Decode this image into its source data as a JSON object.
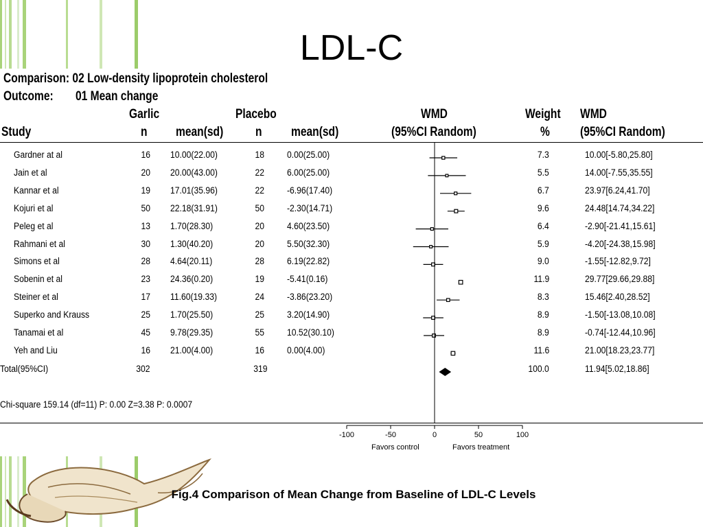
{
  "slide": {
    "title": "LDL-C",
    "caption": "Fig.4 Comparison of Mean Change from Baseline of LDL-C Levels"
  },
  "header": {
    "comparison": "Comparison: 02 Low-density lipoprotein cholesterol",
    "outcome_label": "Outcome:",
    "outcome_value": "01 Mean change",
    "col_study": "Study",
    "col_garlic": "Garlic",
    "col_placebo": "Placebo",
    "col_n": "n",
    "col_mean": "mean(sd)",
    "col_wmd": "WMD",
    "col_ci_random": "(95%CI Random)",
    "col_weight": "Weight",
    "col_pct": "%"
  },
  "chart_data": {
    "type": "forest",
    "xlim": [
      -100,
      100
    ],
    "x_ticks": [
      "-100",
      "-50",
      "0",
      "50",
      "100"
    ],
    "x_tick_values": [
      -100,
      -50,
      0,
      50,
      100
    ],
    "favors_left": "Favors control",
    "favors_right": "Favors treatment",
    "studies": [
      {
        "study": "Gardner at al",
        "g_n": "16",
        "g_mean": "10.00(22.00)",
        "p_n": "18",
        "p_mean": "0.00(25.00)",
        "weight": "7.3",
        "wmd_text": "10.00[-5.80,25.80]",
        "est": 10.0,
        "lo": -5.8,
        "hi": 25.8
      },
      {
        "study": "Jain et al",
        "g_n": "20",
        "g_mean": "20.00(43.00)",
        "p_n": "22",
        "p_mean": "6.00(25.00)",
        "weight": "5.5",
        "wmd_text": "14.00[-7.55,35.55]",
        "est": 14.0,
        "lo": -7.55,
        "hi": 35.55
      },
      {
        "study": "Kannar et al",
        "g_n": "19",
        "g_mean": "17.01(35.96)",
        "p_n": "22",
        "p_mean": "-6.96(17.40)",
        "weight": "6.7",
        "wmd_text": "23.97[6.24,41.70]",
        "est": 23.97,
        "lo": 6.24,
        "hi": 41.7
      },
      {
        "study": "Kojuri et al",
        "g_n": "50",
        "g_mean": "22.18(31.91)",
        "p_n": "50",
        "p_mean": "-2.30(14.71)",
        "weight": "9.6",
        "wmd_text": "24.48[14.74,34.22]",
        "est": 24.48,
        "lo": 14.74,
        "hi": 34.22
      },
      {
        "study": "Peleg et al",
        "g_n": "13",
        "g_mean": "1.70(28.30)",
        "p_n": "20",
        "p_mean": "4.60(23.50)",
        "weight": "6.4",
        "wmd_text": "-2.90[-21.41,15.61]",
        "est": -2.9,
        "lo": -21.41,
        "hi": 15.61
      },
      {
        "study": "Rahmani et al",
        "g_n": "30",
        "g_mean": "1.30(40.20)",
        "p_n": "20",
        "p_mean": "5.50(32.30)",
        "weight": "5.9",
        "wmd_text": "-4.20[-24.38,15.98]",
        "est": -4.2,
        "lo": -24.38,
        "hi": 15.98
      },
      {
        "study": "Simons et al",
        "g_n": "28",
        "g_mean": "4.64(20.11)",
        "p_n": "28",
        "p_mean": "6.19(22.82)",
        "weight": "9.0",
        "wmd_text": "-1.55[-12.82,9.72]",
        "est": -1.55,
        "lo": -12.82,
        "hi": 9.72
      },
      {
        "study": "Sobenin et al",
        "g_n": "23",
        "g_mean": "24.36(0.20)",
        "p_n": "19",
        "p_mean": "-5.41(0.16)",
        "weight": "11.9",
        "wmd_text": "29.77[29.66,29.88]",
        "est": 29.77,
        "lo": 29.66,
        "hi": 29.88
      },
      {
        "study": "Steiner et al",
        "g_n": "17",
        "g_mean": "11.60(19.33)",
        "p_n": "24",
        "p_mean": "-3.86(23.20)",
        "weight": "8.3",
        "wmd_text": "15.46[2.40,28.52]",
        "est": 15.46,
        "lo": 2.4,
        "hi": 28.52
      },
      {
        "study": "Superko and Krauss",
        "g_n": "25",
        "g_mean": "1.70(25.50)",
        "p_n": "25",
        "p_mean": "3.20(14.90)",
        "weight": "8.9",
        "wmd_text": "-1.50[-13.08,10.08]",
        "est": -1.5,
        "lo": -13.08,
        "hi": 10.08
      },
      {
        "study": "Tanamai et al",
        "g_n": "45",
        "g_mean": "9.78(29.35)",
        "p_n": "55",
        "p_mean": "10.52(30.10)",
        "weight": "8.9",
        "wmd_text": "-0.74[-12.44,10.96]",
        "est": -0.74,
        "lo": -12.44,
        "hi": 10.96
      },
      {
        "study": "Yeh and Liu",
        "g_n": "16",
        "g_mean": "21.00(4.00)",
        "p_n": "16",
        "p_mean": "0.00(4.00)",
        "weight": "11.6",
        "wmd_text": "21.00[18.23,23.77]",
        "est": 21.0,
        "lo": 18.23,
        "hi": 23.77
      }
    ],
    "total": {
      "label": "Total(95%CI)",
      "g_n": "302",
      "p_n": "319",
      "weight": "100.0",
      "wmd_text": "11.94[5.02,18.86]",
      "est": 11.94,
      "lo": 5.02,
      "hi": 18.86
    },
    "heterogeneity": "Chi-square 159.14 (df=11) P: 0.00  Z=3.38 P: 0.0007"
  },
  "colors": {
    "stripe_dark": "#8dc63f",
    "stripe_light": "#d9eccb",
    "garlic_skin": "#f0e4cc",
    "garlic_shadow": "#8b6a3e"
  }
}
